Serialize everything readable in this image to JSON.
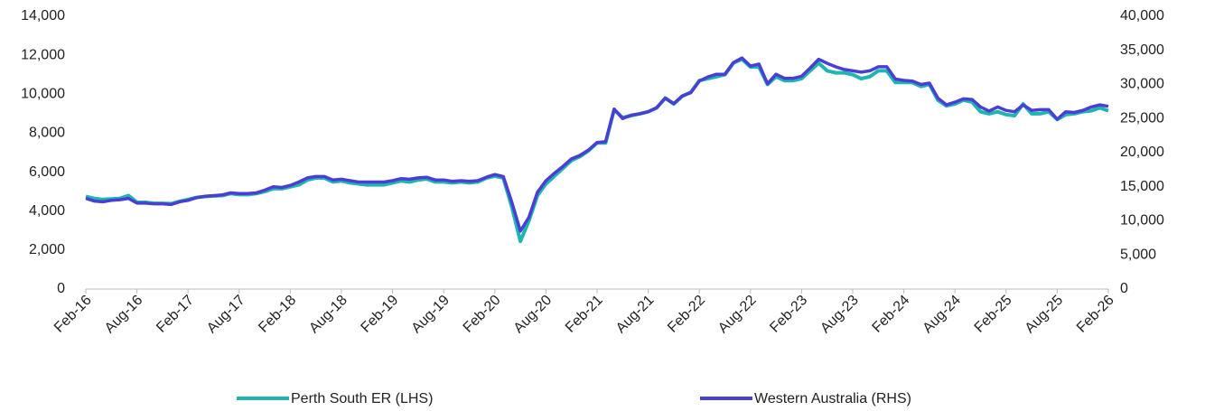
{
  "chart_data": {
    "type": "line",
    "categories": [
      "Feb-16",
      null,
      null,
      null,
      null,
      null,
      "Aug-16",
      null,
      null,
      null,
      null,
      null,
      "Feb-17",
      null,
      null,
      null,
      null,
      null,
      "Aug-17",
      null,
      null,
      null,
      null,
      null,
      "Feb-18",
      null,
      null,
      null,
      null,
      null,
      "Aug-18",
      null,
      null,
      null,
      null,
      null,
      "Feb-19",
      null,
      null,
      null,
      null,
      null,
      "Aug-19",
      null,
      null,
      null,
      null,
      null,
      "Feb-20",
      null,
      null,
      null,
      null,
      null,
      "Aug-20",
      null,
      null,
      null,
      null,
      null,
      "Feb-21",
      null,
      null,
      null,
      null,
      null,
      "Aug-21",
      null,
      null,
      null,
      null,
      null,
      "Feb-22",
      null,
      null,
      null,
      null,
      null,
      "Aug-22",
      null,
      null,
      null,
      null,
      null,
      "Feb-23",
      null,
      null,
      null,
      null,
      null,
      "Aug-23",
      null,
      null,
      null,
      null,
      null,
      "Feb-24",
      null,
      null,
      null,
      null,
      null,
      "Aug-24",
      null,
      null,
      null,
      null,
      null,
      "Feb-25",
      null,
      null,
      null,
      null,
      null,
      "Aug-25",
      null,
      null,
      null,
      null,
      null,
      "Feb-26"
    ],
    "series": [
      {
        "name": "Perth South ER (LHS)",
        "color": "#1fb5b0",
        "axis": "y",
        "values": [
          4750,
          4650,
          4600,
          4620,
          4650,
          4800,
          4450,
          4450,
          4400,
          4400,
          4380,
          4500,
          4600,
          4700,
          4750,
          4780,
          4800,
          4900,
          4850,
          4850,
          4900,
          5000,
          5150,
          5150,
          5250,
          5350,
          5600,
          5700,
          5700,
          5500,
          5550,
          5450,
          5400,
          5350,
          5350,
          5350,
          5450,
          5550,
          5500,
          5600,
          5650,
          5500,
          5500,
          5450,
          5500,
          5450,
          5500,
          5700,
          5800,
          5700,
          4200,
          2450,
          3500,
          4800,
          5400,
          5800,
          6200,
          6600,
          6800,
          7100,
          7500,
          7500,
          9200,
          8800,
          8900,
          9000,
          9100,
          9300,
          9800,
          9500,
          9900,
          10100,
          10700,
          10800,
          10900,
          11000,
          11600,
          11800,
          11400,
          11400,
          10500,
          10900,
          10700,
          10700,
          10800,
          11200,
          11600,
          11200,
          11100,
          11100,
          11000,
          10800,
          10900,
          11200,
          11200,
          10600,
          10600,
          10600,
          10400,
          10500,
          9700,
          9400,
          9500,
          9700,
          9600,
          9100,
          9000,
          9100,
          8950,
          8900,
          9500,
          9000,
          9000,
          9100,
          8700,
          8950,
          9000,
          9100,
          9150,
          9300,
          9150
        ]
      },
      {
        "name": "Western Australia (RHS)",
        "color": "#4a3fd4",
        "axis": "y2",
        "values": [
          13300,
          12900,
          12800,
          13000,
          13100,
          13300,
          12600,
          12600,
          12500,
          12500,
          12400,
          12800,
          13000,
          13400,
          13600,
          13700,
          13800,
          14100,
          14000,
          14000,
          14100,
          14500,
          15000,
          14900,
          15200,
          15700,
          16300,
          16500,
          16500,
          16000,
          16100,
          15900,
          15700,
          15700,
          15700,
          15700,
          15900,
          16200,
          16100,
          16300,
          16400,
          16000,
          16000,
          15800,
          15900,
          15800,
          15900,
          16400,
          16800,
          16500,
          12700,
          8500,
          10500,
          14200,
          15900,
          17000,
          18000,
          19100,
          19600,
          20400,
          21500,
          21600,
          26400,
          25000,
          25500,
          25700,
          26000,
          26600,
          28000,
          27200,
          28300,
          28800,
          30500,
          31100,
          31500,
          31500,
          33200,
          33900,
          32700,
          33000,
          30100,
          31500,
          30900,
          30900,
          31200,
          32400,
          33700,
          33100,
          32600,
          32200,
          32000,
          31800,
          32000,
          32600,
          32600,
          30800,
          30600,
          30500,
          30000,
          30200,
          28000,
          27000,
          27400,
          27900,
          27800,
          26700,
          26100,
          26700,
          26200,
          26000,
          27000,
          26200,
          26300,
          26300,
          24900,
          26000,
          25900,
          26200,
          26700,
          27000,
          26800
        ]
      }
    ],
    "ylim": [
      0,
      14000
    ],
    "yticks": [
      0,
      {
        "value": 2000,
        "label": "2,000"
      },
      {
        "value": 4000,
        "label": "4,000"
      },
      {
        "value": 6000,
        "label": "6,000"
      },
      {
        "value": 8000,
        "label": "8,000"
      },
      {
        "value": 10000,
        "label": "10,000"
      },
      {
        "value": 12000,
        "label": "12,000"
      },
      {
        "value": 14000,
        "label": "14,000"
      }
    ],
    "y2lim": [
      0,
      40000
    ],
    "y2ticks": [
      0,
      {
        "value": 5000,
        "label": "5,000"
      },
      {
        "value": 10000,
        "label": "10,000"
      },
      {
        "value": 15000,
        "label": "15,000"
      },
      {
        "value": 20000,
        "label": "20,000"
      },
      {
        "value": 25000,
        "label": "25,000"
      },
      {
        "value": 30000,
        "label": "30,000"
      },
      {
        "value": 35000,
        "label": "35,000"
      },
      {
        "value": 40000,
        "label": "40,000"
      }
    ],
    "grid": false,
    "legend": "bottom"
  }
}
